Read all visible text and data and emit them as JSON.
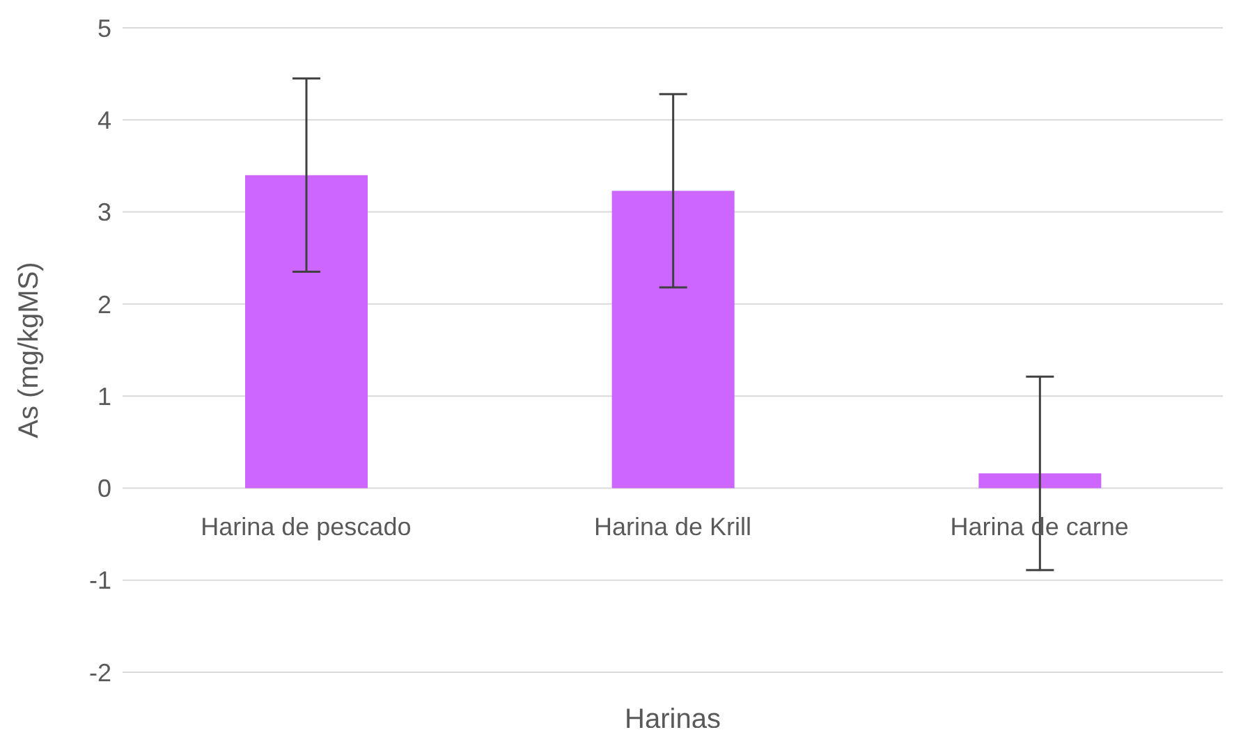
{
  "chart_data": {
    "type": "bar",
    "xlabel": "Harinas",
    "ylabel": "As (mg/kgMS)",
    "categories": [
      "Harina de pescado",
      "Harina de Krill",
      "Harina de carne"
    ],
    "values": [
      3.4,
      3.23,
      0.16
    ],
    "errors": [
      1.05,
      1.05,
      1.05
    ],
    "color": "#cc66ff",
    "ylim": [
      -2,
      5
    ],
    "yticks": [
      -2,
      -1,
      0,
      1,
      2,
      3,
      4,
      5
    ],
    "grid": "y"
  }
}
